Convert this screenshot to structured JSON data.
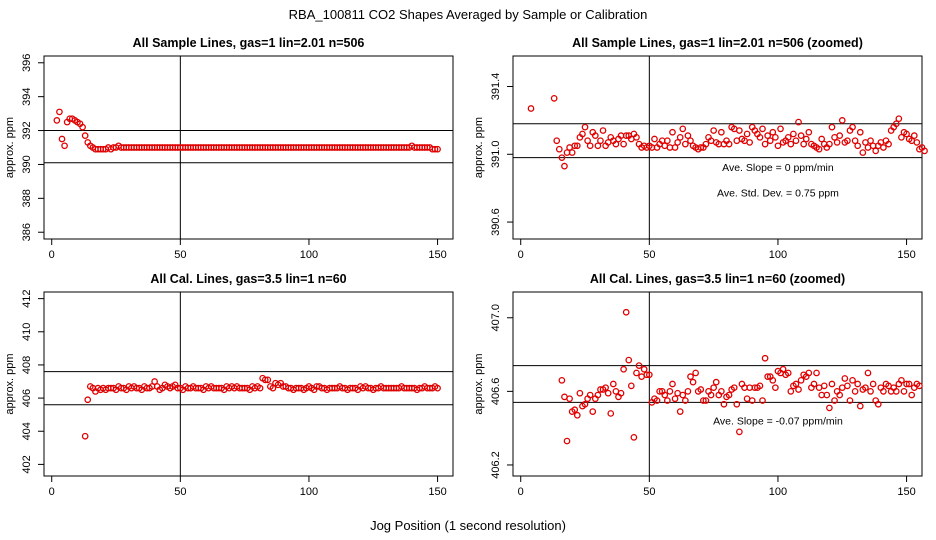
{
  "page": {
    "title": "RBA_100811  CO2 Shapes Averaged by Sample or Calibration",
    "xlabel": "Jog Position (1 second resolution)"
  },
  "colors": {
    "points": "#e00000",
    "lines": "#000000",
    "background": "#ffffff"
  },
  "chart_data": [
    {
      "type": "scatter",
      "title": "All Sample Lines, gas=1 lin=2.01 n=506",
      "ylabel": "approx. ppm",
      "xlim": [
        -3,
        156
      ],
      "ylim": [
        385.6,
        396.4
      ],
      "xticks": [
        0,
        50,
        100,
        150
      ],
      "yticks": [
        386,
        388,
        390,
        392,
        394,
        396
      ],
      "hlines": [
        392.0,
        390.1
      ],
      "vline": 50,
      "annotations": [],
      "series": [
        {
          "x_start": 2,
          "x_step": 1,
          "values": [
            392.6,
            393.1,
            391.5,
            391.1,
            392.5,
            392.7,
            392.7,
            392.6,
            392.5,
            392.4,
            392.2,
            391.7,
            391.3,
            391.1,
            391.0,
            390.9,
            390.9,
            390.9,
            390.9,
            390.9,
            391.0,
            390.9,
            391.0,
            391.0,
            391.1,
            391.0,
            391.0,
            391.0,
            391.0,
            391.0,
            391.0,
            391.0,
            391.0,
            391.0,
            391.0,
            391.0,
            391.0,
            391.0,
            391.0,
            391.0,
            391.0,
            391.0,
            391.0,
            391.0,
            391.0,
            391.0,
            391.0,
            391.0,
            391.0,
            391.0,
            391.0,
            391.0,
            391.0,
            391.0,
            391.0,
            391.0,
            391.0,
            391.0,
            391.0,
            391.0,
            391.0,
            391.0,
            391.0,
            391.0,
            391.0,
            391.0,
            391.0,
            391.0,
            391.0,
            391.0,
            391.0,
            391.0,
            391.0,
            391.0,
            391.0,
            391.0,
            391.0,
            391.0,
            391.0,
            391.0,
            391.0,
            391.0,
            391.0,
            391.0,
            391.0,
            391.0,
            391.0,
            391.0,
            391.0,
            391.0,
            391.0,
            391.0,
            391.0,
            391.0,
            391.0,
            391.0,
            391.0,
            391.0,
            391.0,
            391.0,
            391.0,
            391.0,
            391.0,
            391.0,
            391.0,
            391.0,
            391.0,
            391.0,
            391.0,
            391.0,
            391.0,
            391.0,
            391.0,
            391.0,
            391.0,
            391.0,
            391.0,
            391.0,
            391.0,
            391.0,
            391.0,
            391.0,
            391.0,
            391.0,
            391.0,
            391.0,
            391.0,
            391.0,
            391.0,
            391.0,
            391.0,
            391.0,
            391.0,
            391.0,
            391.0,
            391.0,
            391.0,
            391.0,
            391.1,
            391.0,
            391.0,
            391.0,
            391.0,
            391.0,
            391.0,
            391.0,
            390.9,
            390.9,
            390.9
          ]
        }
      ]
    },
    {
      "type": "scatter",
      "title": "All Sample Lines, gas=1 lin=2.01 n=506 (zoomed)",
      "ylabel": "approx. ppm",
      "xlim": [
        -3,
        156
      ],
      "ylim": [
        390.5,
        391.58
      ],
      "xticks": [
        0,
        50,
        100,
        150
      ],
      "yticks": [
        390.6,
        391.0,
        391.4
      ],
      "hlines": [
        391.18,
        390.98
      ],
      "vline": 50,
      "annotations": [
        {
          "text": "Ave. Slope =  0  ppm/min",
          "x": 100,
          "y": 390.9
        },
        {
          "text": "Ave. Std. Dev. =  0.75  ppm",
          "x": 100,
          "y": 390.75
        }
      ],
      "series": [
        {
          "x_start": 4,
          "x_step": 1,
          "values": [
            391.27,
            null,
            null,
            null,
            null,
            null,
            null,
            null,
            null,
            391.33,
            391.08,
            391.03,
            390.98,
            390.93,
            391.01,
            391.04,
            391.01,
            391.05,
            391.05,
            391.1,
            391.12,
            391.16,
            391.08,
            391.05,
            391.13,
            391.11,
            391.05,
            391.08,
            391.14,
            391.05,
            391.07,
            391.1,
            391.08,
            391.06,
            391.09,
            391.11,
            391.06,
            391.11,
            391.11,
            391.09,
            391.12,
            391.1,
            391.06,
            391.04,
            391.05,
            391.04,
            391.05,
            391.04,
            391.09,
            391.04,
            391.06,
            391.08,
            391.05,
            391.08,
            391.04,
            391.13,
            391.04,
            391.07,
            391.1,
            391.15,
            391.06,
            391.11,
            391.08,
            391.05,
            391.04,
            391.03,
            391.04,
            391.04,
            391.06,
            391.1,
            391.08,
            391.14,
            391.07,
            391.06,
            391.13,
            391.06,
            391.08,
            391.06,
            391.16,
            391.15,
            391.08,
            391.14,
            391.09,
            391.08,
            391.12,
            391.07,
            391.16,
            391.14,
            391.12,
            391.1,
            391.15,
            391.06,
            391.11,
            391.08,
            391.13,
            391.1,
            391.05,
            391.15,
            391.07,
            391.08,
            391.1,
            391.06,
            391.12,
            391.08,
            391.19,
            391.11,
            391.06,
            391.09,
            391.13,
            391.06,
            391.05,
            391.04,
            391.03,
            391.09,
            391.06,
            391.04,
            391.06,
            391.16,
            391.1,
            391.07,
            391.11,
            391.2,
            391.07,
            391.08,
            391.14,
            391.16,
            391.08,
            391.05,
            391.13,
            391.01,
            391.07,
            391.04,
            391.08,
            391.05,
            391.02,
            391.05,
            391.07,
            391.04,
            391.08,
            391.06,
            391.14,
            391.16,
            391.18,
            391.21,
            391.1,
            391.13,
            391.12,
            391.09,
            391.08,
            391.11,
            391.07,
            391.03,
            391.04,
            391.02
          ]
        }
      ]
    },
    {
      "type": "scatter",
      "title": "All Cal. Lines, gas=3.5 lin=1 n=60",
      "ylabel": "approx. ppm",
      "xlim": [
        -3,
        156
      ],
      "ylim": [
        401.3,
        412.4
      ],
      "xticks": [
        0,
        50,
        100,
        150
      ],
      "yticks": [
        402,
        404,
        406,
        408,
        410,
        412
      ],
      "hlines": [
        407.6,
        405.6
      ],
      "vline": 50,
      "annotations": [],
      "series": [
        {
          "x_start": 13,
          "x_step": 1,
          "values": [
            403.7,
            405.9,
            406.7,
            406.6,
            406.4,
            406.6,
            406.5,
            406.6,
            406.5,
            406.6,
            406.6,
            406.6,
            406.5,
            406.7,
            406.6,
            406.6,
            406.5,
            406.7,
            406.6,
            406.7,
            406.6,
            406.6,
            406.5,
            406.7,
            406.6,
            406.6,
            406.7,
            407.0,
            406.7,
            406.5,
            406.6,
            406.8,
            406.7,
            406.6,
            406.7,
            406.8,
            406.6,
            406.6,
            406.5,
            406.7,
            406.6,
            406.6,
            406.7,
            406.6,
            406.6,
            406.6,
            406.5,
            406.7,
            406.6,
            406.7,
            406.6,
            406.6,
            406.6,
            406.6,
            406.5,
            406.7,
            406.6,
            406.7,
            406.6,
            406.7,
            406.6,
            406.6,
            406.6,
            406.6,
            406.5,
            406.7,
            406.6,
            406.7,
            406.6,
            407.2,
            407.1,
            407.1,
            406.7,
            406.6,
            406.9,
            406.8,
            406.9,
            406.7,
            406.7,
            406.6,
            406.6,
            406.5,
            406.6,
            406.6,
            406.6,
            406.5,
            406.6,
            406.7,
            406.6,
            406.5,
            406.7,
            406.7,
            406.6,
            406.6,
            406.5,
            406.6,
            406.6,
            406.6,
            406.6,
            406.7,
            406.6,
            406.6,
            406.5,
            406.6,
            406.6,
            406.6,
            406.5,
            406.7,
            406.6,
            406.7,
            406.6,
            406.6,
            406.5,
            406.6,
            406.6,
            406.7,
            406.6,
            406.6,
            406.6,
            406.6,
            406.6,
            406.6,
            406.6,
            406.7,
            406.6,
            406.6,
            406.6,
            406.6,
            406.6,
            406.5,
            406.6,
            406.6,
            406.7,
            406.6,
            406.6,
            406.6,
            406.7,
            406.6
          ]
        }
      ]
    },
    {
      "type": "scatter",
      "title": "All Cal. Lines, gas=3.5 lin=1 n=60 (zoomed)",
      "ylabel": "approx. ppm",
      "xlim": [
        -3,
        156
      ],
      "ylim": [
        406.14,
        407.14
      ],
      "xticks": [
        0,
        50,
        100,
        150
      ],
      "yticks": [
        406.2,
        406.6,
        407.0
      ],
      "hlines": [
        406.74,
        406.54
      ],
      "vline": 50,
      "annotations": [
        {
          "text": "Ave. Slope =  -0.07  ppm/min",
          "x": 100,
          "y": 406.42
        }
      ],
      "series": [
        {
          "x_start": 16,
          "x_step": 1,
          "values": [
            406.66,
            406.57,
            406.33,
            406.56,
            406.49,
            406.5,
            406.47,
            406.59,
            406.52,
            406.53,
            406.56,
            406.58,
            406.49,
            406.56,
            406.58,
            406.61,
            406.61,
            406.62,
            406.59,
            406.48,
            406.64,
            406.6,
            406.57,
            406.59,
            406.72,
            407.03,
            406.77,
            406.63,
            406.35,
            406.7,
            406.74,
            406.68,
            406.72,
            406.69,
            406.69,
            406.54,
            406.56,
            406.55,
            406.6,
            406.6,
            406.58,
            406.55,
            406.6,
            406.64,
            406.56,
            406.59,
            406.49,
            406.58,
            406.55,
            406.6,
            406.68,
            406.65,
            406.7,
            406.6,
            406.61,
            406.55,
            406.55,
            406.6,
            406.58,
            406.62,
            406.65,
            406.58,
            406.6,
            406.53,
            406.57,
            406.58,
            406.61,
            406.62,
            406.53,
            406.38,
            406.64,
            406.62,
            406.56,
            406.62,
            406.55,
            406.62,
            406.62,
            406.63,
            406.55,
            406.78,
            406.68,
            406.68,
            406.66,
            406.62,
            406.71,
            406.7,
            406.72,
            406.69,
            406.7,
            406.6,
            406.63,
            406.64,
            406.61,
            406.66,
            406.69,
            406.68,
            406.7,
            406.62,
            406.64,
            406.7,
            406.62,
            406.58,
            406.63,
            406.58,
            406.51,
            406.64,
            406.55,
            406.6,
            406.58,
            406.62,
            406.67,
            406.63,
            406.55,
            406.66,
            406.6,
            406.64,
            406.52,
            406.61,
            406.62,
            406.7,
            406.6,
            406.64,
            406.55,
            406.53,
            406.62,
            406.6,
            406.64,
            406.63,
            406.6,
            406.62,
            406.6,
            406.64,
            406.66,
            406.6,
            406.64,
            406.64,
            406.58,
            406.62,
            406.64,
            406.63
          ]
        }
      ]
    }
  ]
}
